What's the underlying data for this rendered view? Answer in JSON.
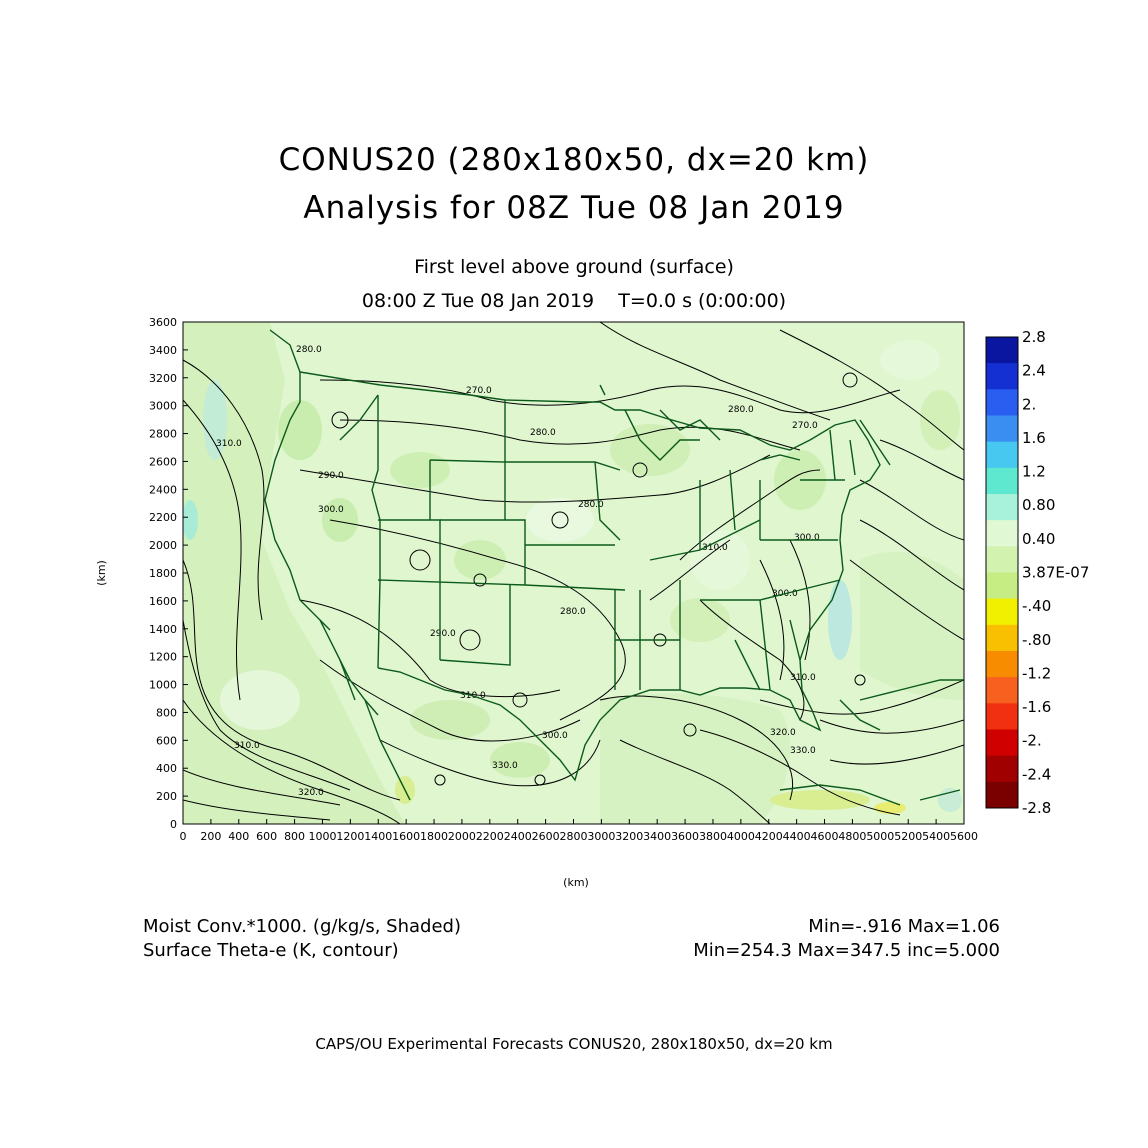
{
  "header": {
    "title_line1": "CONUS20 (280x180x50, dx=20 km)",
    "title_line2": "Analysis for 08Z Tue 08 Jan 2019",
    "subtitle_line1": "First level above ground (surface)",
    "subtitle_line2": "08:00 Z Tue 08 Jan 2019    T=0.0 s (0:00:00)"
  },
  "axes": {
    "x_title": "(km)",
    "y_title": "(km)",
    "x_ticks": [
      "0",
      "200",
      "400",
      "600",
      "800",
      "1000",
      "1200",
      "1400",
      "1600",
      "1800",
      "2000",
      "2200",
      "2400",
      "2600",
      "2800",
      "3000",
      "3200",
      "3400",
      "3600",
      "3800",
      "4000",
      "4200",
      "4400",
      "4600",
      "4800",
      "5000",
      "5200",
      "5400",
      "5600"
    ],
    "y_ticks": [
      "0",
      "200",
      "400",
      "600",
      "800",
      "1000",
      "1200",
      "1400",
      "1600",
      "1800",
      "2000",
      "2200",
      "2400",
      "2600",
      "2800",
      "3000",
      "3200",
      "3400",
      "3600"
    ],
    "x_range": [
      0,
      5600
    ],
    "y_range": [
      0,
      3600
    ]
  },
  "colorbar": {
    "labels": [
      "2.8",
      "2.4",
      "2.",
      "1.6",
      "1.2",
      "0.80",
      "0.40",
      "3.87E-07",
      "-.40",
      "-.80",
      "-1.2",
      "-1.6",
      "-2.",
      "-2.4",
      "-2.8"
    ],
    "colors": [
      "#0a16a0",
      "#1430d2",
      "#2a5ef0",
      "#3a8ef2",
      "#46c8f0",
      "#5ee8d0",
      "#a8f2dc",
      "#e0f8d4",
      "#d2f2b0",
      "#c6ec84",
      "#f0f000",
      "#f8c000",
      "#f88c00",
      "#f86020",
      "#f03010",
      "#d00000",
      "#a00000",
      "#7a0000"
    ]
  },
  "contour_labels": [
    "280.0",
    "270.0",
    "280.0",
    "280.0",
    "290.0",
    "300.0",
    "290.0",
    "280.0",
    "270.0",
    "310.0",
    "310.0",
    "300.0",
    "300.0",
    "310.0",
    "280.0",
    "310.0",
    "300.0",
    "330.0",
    "320.0",
    "310.0",
    "320.0",
    "330.0"
  ],
  "legend": {
    "shaded_label": "Moist Conv.*1000. (g/kg/s, Shaded)",
    "shaded_range": "Min=-.916  Max=1.06",
    "contour_label": "Surface Theta-e (K, contour)",
    "contour_range": "Min=254.3  Max=347.5  inc=5.000"
  },
  "footer": "CAPS/OU Experimental Forecasts   CONUS20, 280x180x50, dx=20 km"
}
